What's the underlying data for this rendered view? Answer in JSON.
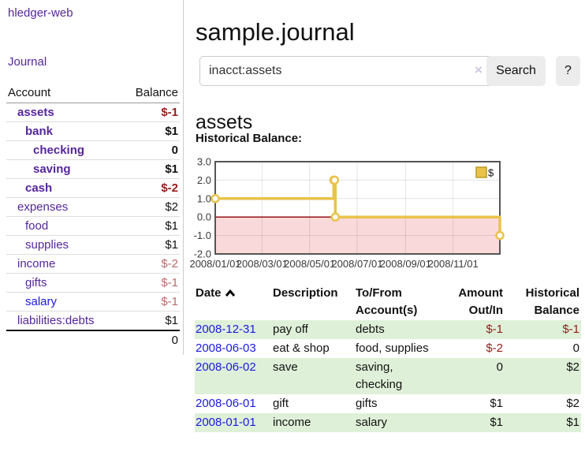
{
  "colors": {
    "purple": "#55269b",
    "blue": "#1a1ae0",
    "neg_strong": "#941d1d",
    "neg_soft": "#b96a6a",
    "row_green": "#dff0d8",
    "chart_gold": "#e9c34a",
    "chart_pink": "#f9d9d9",
    "zero_line": "#8b0000"
  },
  "app": {
    "brand": "hledger-web"
  },
  "sidebar": {
    "journal_link": "Journal",
    "accounts": {
      "headers": {
        "account": "Account",
        "balance": "Balance"
      },
      "rows": [
        {
          "name": "assets",
          "indent": 1,
          "balance": "$-1",
          "bold": true,
          "neg": "strong"
        },
        {
          "name": "bank",
          "indent": 2,
          "balance": "$1",
          "bold": true
        },
        {
          "name": "checking",
          "indent": 3,
          "balance": "0",
          "bold": true
        },
        {
          "name": "saving",
          "indent": 3,
          "balance": "$1",
          "bold": true
        },
        {
          "name": "cash",
          "indent": 2,
          "balance": "$-2",
          "bold": true,
          "neg": "strong"
        },
        {
          "name": "expenses",
          "indent": 1,
          "balance": "$2"
        },
        {
          "name": "food",
          "indent": 2,
          "balance": "$1"
        },
        {
          "name": "supplies",
          "indent": 2,
          "balance": "$1"
        },
        {
          "name": "income",
          "indent": 1,
          "balance": "$-2",
          "neg": "soft"
        },
        {
          "name": "gifts",
          "indent": 2,
          "balance": "$-1",
          "neg": "soft"
        },
        {
          "name": "salary",
          "indent": 2,
          "balance": "$-1",
          "neg": "soft",
          "blue_link": true
        },
        {
          "name": "liabilities:debts",
          "indent": 1,
          "balance": "$1"
        }
      ],
      "total": "0"
    }
  },
  "header": {
    "title": "sample.journal"
  },
  "search": {
    "value": "inacct:assets",
    "clear_icon": "×",
    "button_label": "Search",
    "help_label": "?"
  },
  "account_page": {
    "title": "assets",
    "chart_title": "Historical Balance:"
  },
  "chart_data": {
    "type": "line",
    "title": "Historical Balance:",
    "series": [
      {
        "name": "$",
        "color": "#e9c34a",
        "step": true,
        "points": [
          {
            "x": "2008-01-01",
            "y": 1
          },
          {
            "x": "2008-06-01",
            "y": 2
          },
          {
            "x": "2008-06-02",
            "y": 2
          },
          {
            "x": "2008-06-03",
            "y": 0
          },
          {
            "x": "2008-12-31",
            "y": -1
          }
        ]
      }
    ],
    "x_range": [
      "2008-01-01",
      "2008-12-31"
    ],
    "x_ticks": [
      "2008/01/01",
      "2008/03/01",
      "2008/05/01",
      "2008/07/01",
      "2008/09/01",
      "2008/11/01"
    ],
    "y_range": [
      -2,
      3
    ],
    "y_ticks": [
      3.0,
      2.0,
      1.0,
      0.0,
      -1.0,
      -2.0
    ],
    "grid": true,
    "legend": {
      "label": "$",
      "position": "top-right"
    },
    "negative_region_color": "#f9d9d9",
    "zero_line_color": "#8b0000"
  },
  "register": {
    "headers": [
      {
        "label": "Date",
        "sorted": "asc",
        "align": "left"
      },
      {
        "label": "Description",
        "align": "left"
      },
      {
        "label": "To/From Account(s)",
        "align": "left"
      },
      {
        "label": "Amount Out/In",
        "align": "right"
      },
      {
        "label": "Historical Balance",
        "align": "right"
      }
    ],
    "rows": [
      {
        "date": "2008-12-31",
        "description": "pay off",
        "accounts": "debts",
        "amount": "$-1",
        "balance": "$-1"
      },
      {
        "date": "2008-06-03",
        "description": "eat & shop",
        "accounts": "food, supplies",
        "amount": "$-2",
        "balance": "0"
      },
      {
        "date": "2008-06-02",
        "description": "save",
        "accounts": "saving, checking",
        "amount": "0",
        "balance": "$2"
      },
      {
        "date": "2008-06-01",
        "description": "gift",
        "accounts": "gifts",
        "amount": "$1",
        "balance": "$2"
      },
      {
        "date": "2008-01-01",
        "description": "income",
        "accounts": "salary",
        "amount": "$1",
        "balance": "$1"
      }
    ]
  }
}
